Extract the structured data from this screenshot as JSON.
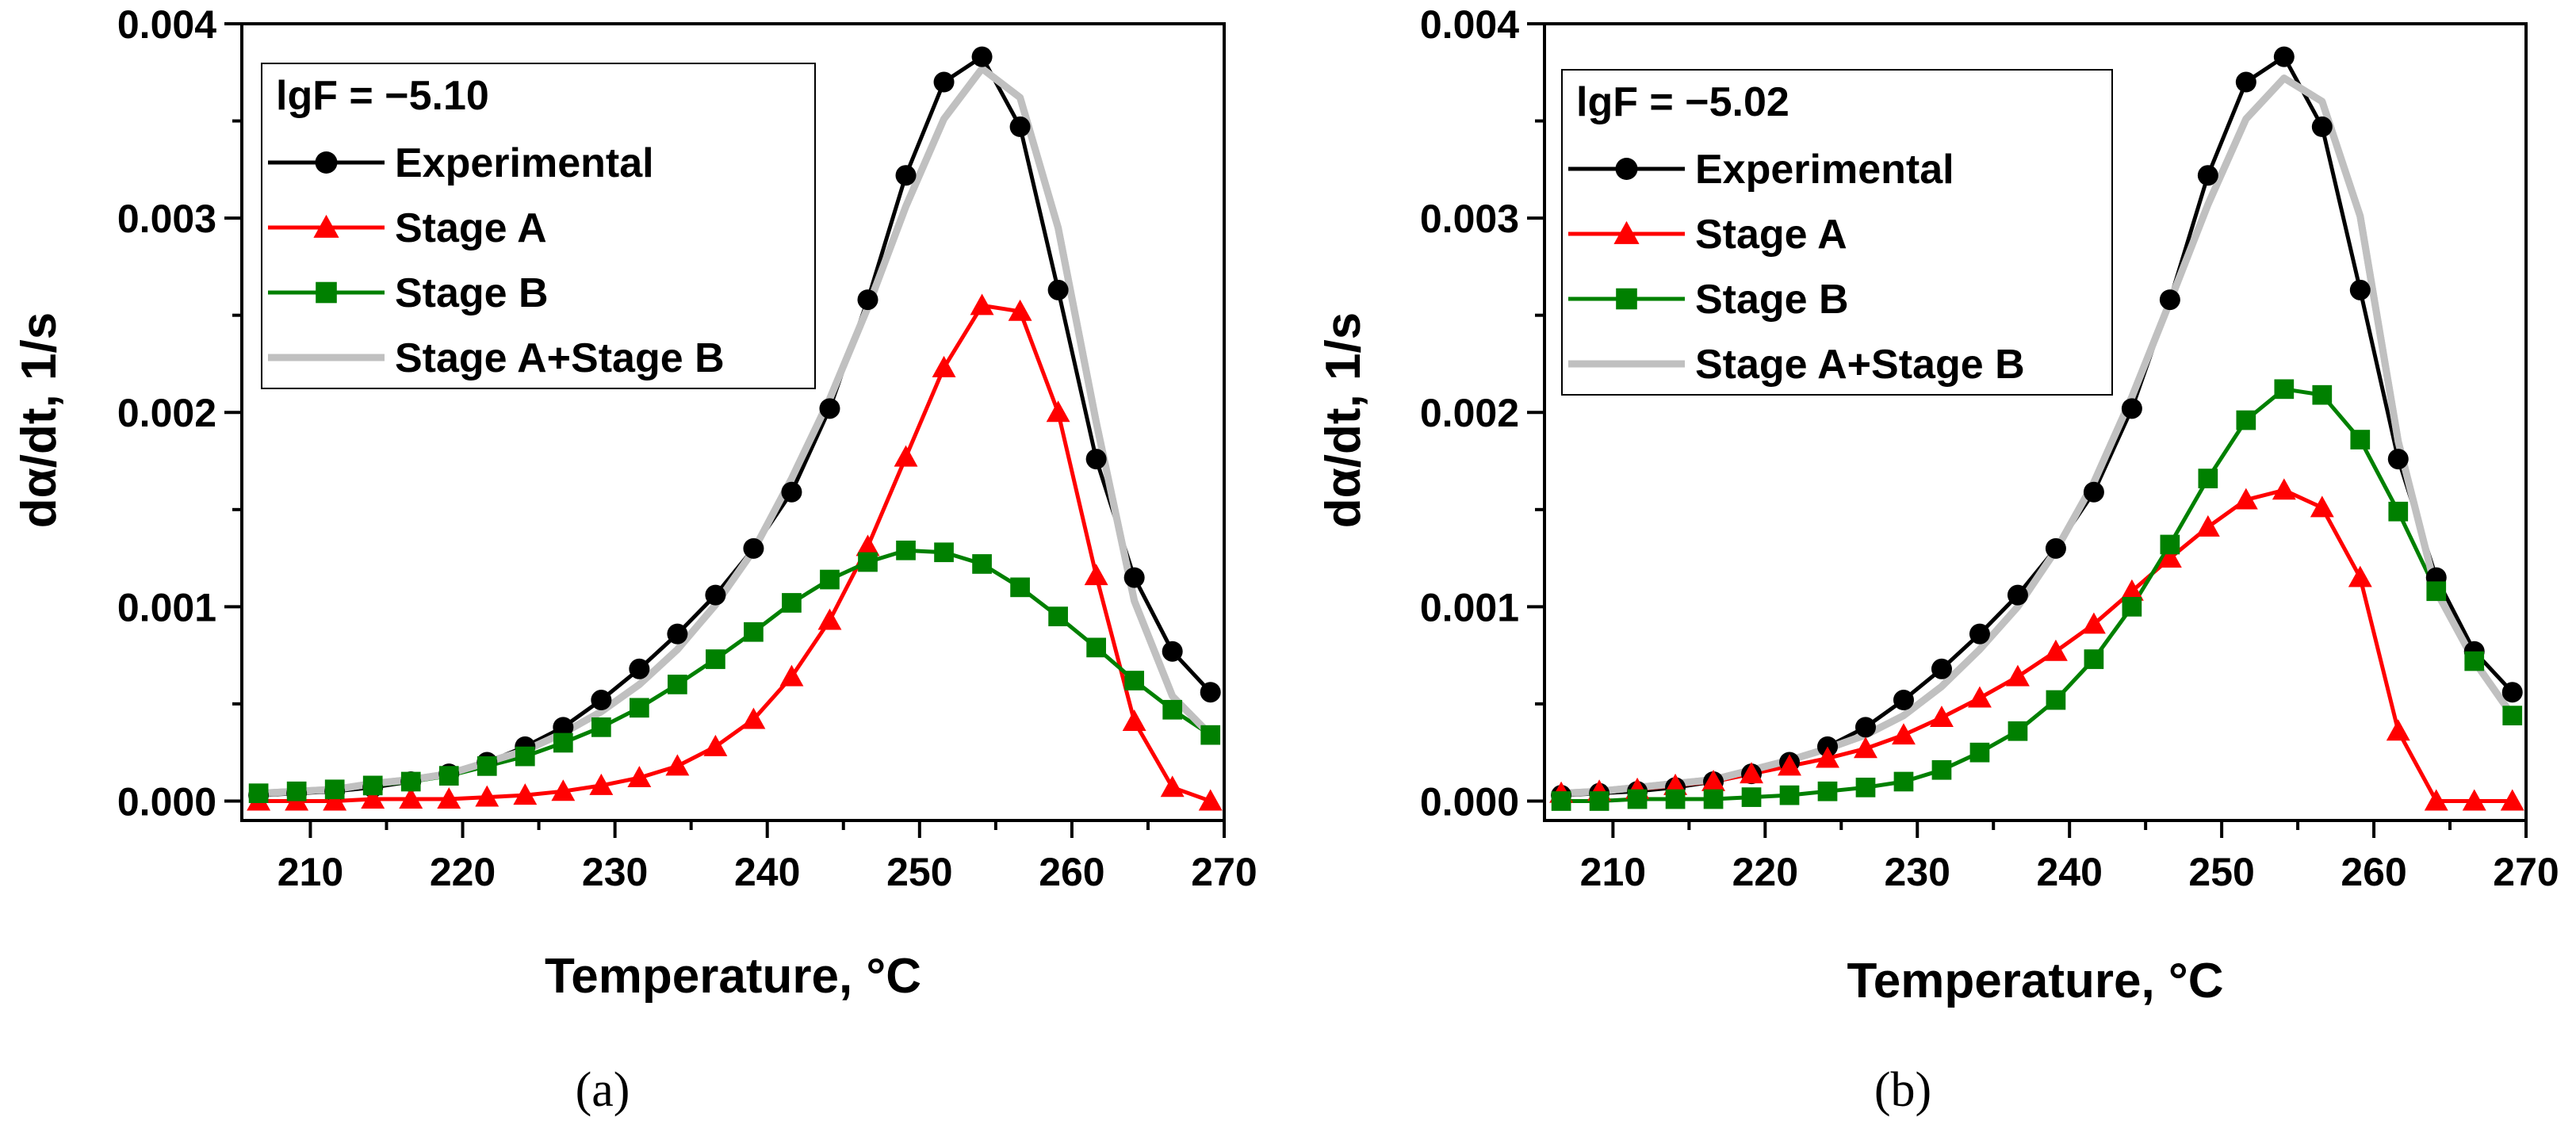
{
  "chart_data": [
    {
      "type": "line",
      "panel": "(a)",
      "annotation": "lgF = −5.10",
      "xlabel": "Temperature, °C",
      "ylabel": "dα/dt, 1/s",
      "xlim": [
        205.5,
        270
      ],
      "ylim": [
        -0.0001,
        0.004
      ],
      "xticks": [
        210,
        220,
        230,
        240,
        250,
        260,
        270
      ],
      "xtick_labels": [
        "210",
        "220",
        "230",
        "240",
        "250",
        "260",
        "270"
      ],
      "yticks": [
        0,
        0.001,
        0.002,
        0.003,
        0.004
      ],
      "ytick_labels": [
        "0.000",
        "0.001",
        "0.002",
        "0.003",
        "0.004"
      ],
      "x": [
        206.6,
        209.1,
        211.6,
        214.1,
        216.6,
        219.1,
        221.6,
        224.1,
        226.6,
        229.1,
        231.6,
        234.1,
        236.6,
        239.1,
        241.6,
        244.1,
        246.6,
        249.1,
        251.6,
        254.1,
        256.6,
        259.1,
        261.6,
        264.1,
        266.6,
        269.1
      ],
      "series": [
        {
          "name": "Experimental",
          "color": "#000000",
          "marker": "circle",
          "values": [
            3e-05,
            4e-05,
            5e-05,
            7e-05,
            0.0001,
            0.00014,
            0.0002,
            0.00028,
            0.00038,
            0.00052,
            0.00068,
            0.00086,
            0.00106,
            0.0013,
            0.00159,
            0.00202,
            0.00258,
            0.00322,
            0.0037,
            0.00383,
            0.00347,
            0.00263,
            0.00176,
            0.00115,
            0.00077,
            0.00056
          ]
        },
        {
          "name": "Stage A",
          "color": "#ff0000",
          "marker": "triangle",
          "values": [
            0.0,
            0.0,
            0.0,
            1e-05,
            1e-05,
            1e-05,
            2e-05,
            3e-05,
            5e-05,
            8e-05,
            0.00012,
            0.00018,
            0.00028,
            0.00042,
            0.00064,
            0.00093,
            0.00131,
            0.00177,
            0.00223,
            0.00255,
            0.00252,
            0.002,
            0.00116,
            0.00041,
            7e-05,
            0.0
          ]
        },
        {
          "name": "Stage B",
          "color": "#008000",
          "marker": "square",
          "values": [
            4e-05,
            5e-05,
            6e-05,
            8e-05,
            0.0001,
            0.00013,
            0.00018,
            0.00023,
            0.0003,
            0.00038,
            0.00048,
            0.0006,
            0.00073,
            0.00087,
            0.00102,
            0.00114,
            0.00123,
            0.00129,
            0.00128,
            0.00122,
            0.0011,
            0.00095,
            0.00079,
            0.00062,
            0.00047,
            0.00034
          ]
        },
        {
          "name": "Stage A+Stage B",
          "color": "#c0c0c0",
          "marker": "none",
          "values": [
            4e-05,
            5e-05,
            6e-05,
            9e-05,
            0.00011,
            0.00014,
            0.0002,
            0.00026,
            0.00035,
            0.00046,
            0.0006,
            0.00078,
            0.00101,
            0.00129,
            0.00166,
            0.00207,
            0.00254,
            0.00306,
            0.00351,
            0.00377,
            0.00362,
            0.00295,
            0.00195,
            0.00103,
            0.00054,
            0.00034
          ]
        }
      ]
    },
    {
      "type": "line",
      "panel": "(b)",
      "annotation": "lgF = −5.02",
      "xlabel": "Temperature, °C",
      "ylabel": "dα/dt, 1/s",
      "xlim": [
        205.5,
        270
      ],
      "ylim": [
        -0.0001,
        0.004
      ],
      "xticks": [
        210,
        220,
        230,
        240,
        250,
        260,
        270
      ],
      "xtick_labels": [
        "210",
        "220",
        "230",
        "240",
        "250",
        "260",
        "270"
      ],
      "yticks": [
        0,
        0.001,
        0.002,
        0.003,
        0.004
      ],
      "ytick_labels": [
        "0.000",
        "0.001",
        "0.002",
        "0.003",
        "0.004"
      ],
      "x": [
        206.6,
        209.1,
        211.6,
        214.1,
        216.6,
        219.1,
        221.6,
        224.1,
        226.6,
        229.1,
        231.6,
        234.1,
        236.6,
        239.1,
        241.6,
        244.1,
        246.6,
        249.1,
        251.6,
        254.1,
        256.6,
        259.1,
        261.6,
        264.1,
        266.6,
        269.1
      ],
      "series": [
        {
          "name": "Experimental",
          "color": "#000000",
          "marker": "circle",
          "values": [
            3e-05,
            4e-05,
            5e-05,
            7e-05,
            0.0001,
            0.00014,
            0.0002,
            0.00028,
            0.00038,
            0.00052,
            0.00068,
            0.00086,
            0.00106,
            0.0013,
            0.00159,
            0.00202,
            0.00258,
            0.00322,
            0.0037,
            0.00383,
            0.00347,
            0.00263,
            0.00176,
            0.00115,
            0.00077,
            0.00056
          ]
        },
        {
          "name": "Stage A",
          "color": "#ff0000",
          "marker": "triangle",
          "values": [
            4e-05,
            5e-05,
            6e-05,
            8e-05,
            0.0001,
            0.00014,
            0.00018,
            0.00022,
            0.00027,
            0.00034,
            0.00043,
            0.00053,
            0.00064,
            0.00077,
            0.00091,
            0.00108,
            0.00125,
            0.00141,
            0.00155,
            0.0016,
            0.00151,
            0.00115,
            0.00036,
            0.0,
            0.0,
            0.0
          ]
        },
        {
          "name": "Stage B",
          "color": "#008000",
          "marker": "square",
          "values": [
            0.0,
            0.0,
            1e-05,
            1e-05,
            1e-05,
            2e-05,
            3e-05,
            5e-05,
            7e-05,
            0.0001,
            0.00016,
            0.00025,
            0.00036,
            0.00052,
            0.00073,
            0.001,
            0.00132,
            0.00166,
            0.00196,
            0.00212,
            0.00209,
            0.00186,
            0.00149,
            0.00108,
            0.00072,
            0.00044
          ]
        },
        {
          "name": "Stage A+Stage B",
          "color": "#c0c0c0",
          "marker": "none",
          "values": [
            4e-05,
            5e-05,
            7e-05,
            9e-05,
            0.00011,
            0.00016,
            0.00021,
            0.00027,
            0.00034,
            0.00044,
            0.00059,
            0.00078,
            0.001,
            0.00129,
            0.00164,
            0.00208,
            0.00257,
            0.00307,
            0.00351,
            0.00372,
            0.0036,
            0.00301,
            0.00185,
            0.00108,
            0.00072,
            0.00044
          ]
        }
      ]
    }
  ]
}
